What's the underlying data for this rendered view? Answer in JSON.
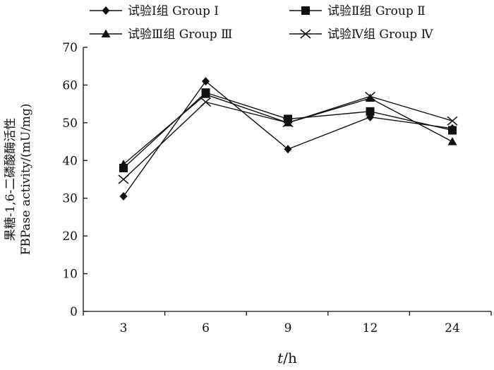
{
  "chart_data": {
    "type": "line",
    "title": "",
    "categories": [
      "3",
      "6",
      "9",
      "12",
      "24"
    ],
    "xlabel": {
      "var": "t",
      "unit": "/h"
    },
    "ylabel": {
      "line1": "果糖-1,6-二磷酸酶活性",
      "line2": "FBPase activity/(mU/mg)"
    },
    "ylim": [
      0,
      70
    ],
    "yticks": [
      "0",
      "10",
      "20",
      "30",
      "40",
      "50",
      "60",
      "70"
    ],
    "grid": false,
    "legend_position": "top",
    "series": [
      {
        "name": "试验Ⅰ组  Group Ⅰ",
        "marker": "diamond",
        "values": [
          30.5,
          61,
          43,
          51.5,
          48.5
        ]
      },
      {
        "name": "试验Ⅱ组  Group Ⅱ",
        "marker": "square",
        "values": [
          38,
          58,
          51,
          53,
          48
        ]
      },
      {
        "name": "试验Ⅲ组  Group Ⅲ",
        "marker": "triangle",
        "values": [
          39,
          57.5,
          50,
          56.5,
          45
        ]
      },
      {
        "name": "试验Ⅳ组  Group Ⅳ",
        "marker": "x",
        "values": [
          35,
          55.5,
          50,
          57,
          50.5
        ]
      }
    ]
  },
  "colors": {
    "ink": "#111111",
    "background": "#ffffff"
  }
}
